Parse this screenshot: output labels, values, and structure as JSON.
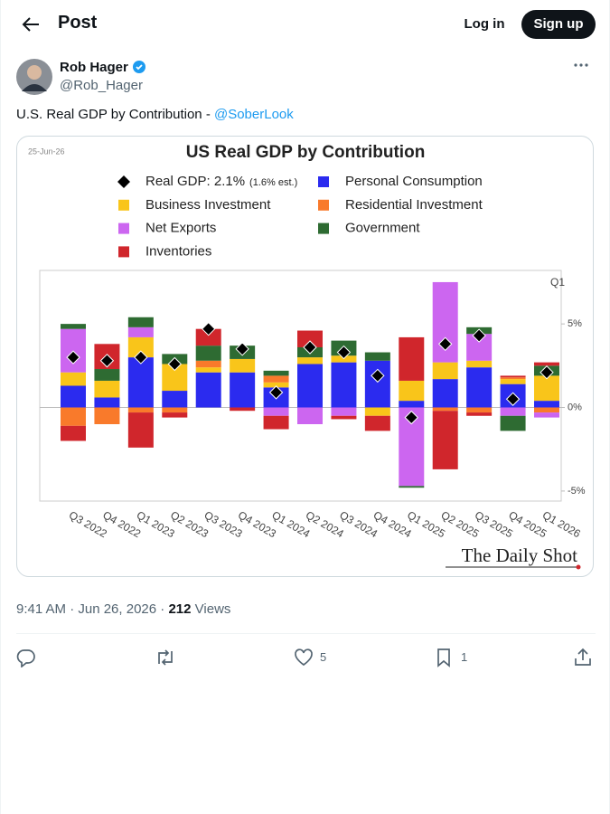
{
  "header": {
    "title": "Post",
    "login": "Log in",
    "signup": "Sign up"
  },
  "post": {
    "author_name": "Rob Hager",
    "author_handle": "@Rob_Hager",
    "text": "U.S. Real GDP by Contribution - ",
    "mention": "@SoberLook"
  },
  "chart_data": {
    "type": "bar",
    "date": "25-Jun-26",
    "title": "US Real GDP by Contribution",
    "annotation": "Q1",
    "source": "The Daily Shot",
    "categories": [
      "Q3 2022",
      "Q4 2022",
      "Q1 2023",
      "Q2 2023",
      "Q3 2023",
      "Q4 2023",
      "Q1 2024",
      "Q2 2024",
      "Q3 2024",
      "Q4 2024",
      "Q1 2025",
      "Q2 2025",
      "Q3 2025",
      "Q4 2025",
      "Q1 2026"
    ],
    "series": [
      {
        "name": "Real GDP: 2.1%",
        "legend_note": "(1.6% est.)",
        "type": "marker",
        "color": "#000000",
        "values": [
          3.0,
          2.8,
          3.0,
          2.6,
          4.7,
          3.5,
          0.9,
          3.6,
          3.3,
          1.9,
          -0.6,
          3.8,
          4.3,
          0.5,
          2.1
        ]
      },
      {
        "name": "Personal Consumption",
        "color": "#2b2bef",
        "values": [
          1.3,
          0.6,
          3.0,
          1.0,
          2.1,
          2.1,
          1.2,
          2.6,
          2.7,
          2.8,
          0.4,
          1.7,
          2.4,
          1.4,
          0.4
        ]
      },
      {
        "name": "Business Investment",
        "color": "#f9c51a",
        "values": [
          0.8,
          1.0,
          1.2,
          1.6,
          0.3,
          0.8,
          0.3,
          0.4,
          0.4,
          -0.5,
          1.2,
          1.0,
          0.4,
          0.3,
          1.5
        ]
      },
      {
        "name": "Residential Investment",
        "color": "#f97a2b",
        "values": [
          -1.1,
          -1.0,
          -0.3,
          -0.3,
          0.4,
          0,
          0.4,
          0,
          0,
          0,
          0,
          -0.2,
          -0.3,
          0.1,
          -0.3
        ]
      },
      {
        "name": "Net Exports",
        "color": "#cc66f0",
        "values": [
          2.6,
          0,
          0.6,
          0,
          0,
          0,
          -0.5,
          -1.0,
          -0.5,
          0,
          -4.7,
          4.8,
          1.6,
          -0.5,
          -0.3
        ]
      },
      {
        "name": "Government",
        "color": "#2e6b32",
        "values": [
          0.3,
          0.7,
          0.6,
          0.6,
          0.9,
          0.8,
          0.3,
          0.6,
          0.9,
          0.5,
          -0.1,
          0,
          0.4,
          -0.9,
          0.6
        ]
      },
      {
        "name": "Inventories",
        "color": "#d0262c",
        "values": [
          -0.9,
          1.5,
          -2.1,
          -0.3,
          1.0,
          -0.2,
          -0.8,
          1.0,
          -0.2,
          -0.9,
          2.6,
          -3.5,
          -0.2,
          0.1,
          0.2
        ]
      }
    ],
    "ylim": [
      -5.6,
      8.2
    ],
    "yticks": [
      {
        "value": 5,
        "label": "5%"
      },
      {
        "value": 0,
        "label": "0%"
      },
      {
        "value": -5,
        "label": "-5%"
      }
    ]
  },
  "footer": {
    "timestamp": "9:41 AM · Jun 26, 2026 ·",
    "views": 212,
    "views_label": "Views",
    "likes": 5,
    "bookmarks": 1
  }
}
